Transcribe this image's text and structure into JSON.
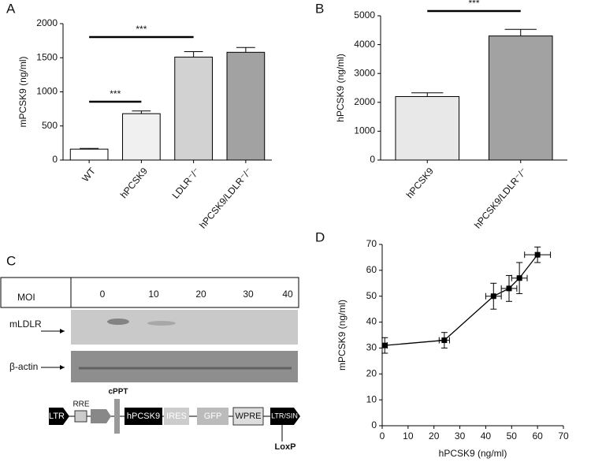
{
  "chart_data": [
    {
      "type": "bar",
      "panel": "A",
      "ylabel": "mPCSK9 (ng/ml)",
      "categories": [
        "WT",
        "hPCSK9",
        "LDLR⁻/⁻",
        "hPCSK9/LDLR⁻/⁻"
      ],
      "values": [
        160,
        680,
        1510,
        1580
      ],
      "errors": [
        10,
        40,
        80,
        70
      ],
      "colors": [
        "#ffffff",
        "#f0f0f0",
        "#d2d2d2",
        "#a2a2a2"
      ],
      "ylim": [
        0,
        2000
      ],
      "yticks": [
        0,
        500,
        1000,
        1500,
        2000
      ],
      "annotations": [
        "***",
        "***"
      ]
    },
    {
      "type": "bar",
      "panel": "B",
      "ylabel": "hPCSK9 (ng/ml)",
      "categories": [
        "hPCSK9",
        "hPCSK9/LDLR⁻/⁻"
      ],
      "values": [
        2200,
        4300
      ],
      "errors": [
        130,
        230
      ],
      "colors": [
        "#e8e8e8",
        "#a2a2a2"
      ],
      "ylim": [
        0,
        5000
      ],
      "yticks": [
        0,
        1000,
        2000,
        3000,
        4000,
        5000
      ],
      "annotations": [
        "***"
      ]
    },
    {
      "type": "line",
      "panel": "D",
      "xlabel": "hPCSK9 (ng/ml)",
      "ylabel": "mPCSK9 (ng/ml)",
      "x": [
        1,
        24,
        43,
        49,
        53,
        60
      ],
      "values": [
        31,
        33,
        50,
        53,
        57,
        66
      ],
      "xerr": [
        1,
        2,
        3,
        3,
        3,
        5
      ],
      "yerr": [
        3,
        3,
        5,
        5,
        6,
        3
      ],
      "color": "#000000",
      "xlim": [
        0,
        70
      ],
      "xticks": [
        0,
        10,
        20,
        30,
        40,
        50,
        60,
        70
      ],
      "ylim": [
        0,
        70
      ],
      "yticks": [
        0,
        10,
        20,
        30,
        40,
        50,
        60,
        70
      ]
    }
  ],
  "panel_c": {
    "panel": "C",
    "moi_header": "MOI",
    "moi": [
      0,
      10,
      20,
      30,
      40
    ],
    "rows": [
      "mLDLR",
      "β-actin"
    ],
    "vector": [
      "LTR",
      "RRE",
      "cPPT",
      "hPCSK9",
      "IRES",
      "GFP",
      "WPRE",
      "LTR/SIN",
      "LoxP"
    ]
  }
}
